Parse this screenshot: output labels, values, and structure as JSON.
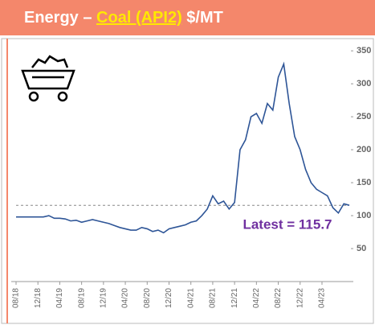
{
  "chart_data": {
    "type": "line",
    "title": {
      "prefix": "Energy –",
      "highlight": "Coal (API2)",
      "suffix": "$/MT"
    },
    "annotation": "Latest = 115.7",
    "x": [
      "08/18",
      "09/18",
      "10/18",
      "11/18",
      "12/18",
      "01/19",
      "02/19",
      "03/19",
      "04/19",
      "05/19",
      "06/19",
      "07/19",
      "08/19",
      "09/19",
      "10/19",
      "11/19",
      "12/19",
      "01/20",
      "02/20",
      "03/20",
      "04/20",
      "05/20",
      "06/20",
      "07/20",
      "08/20",
      "09/20",
      "10/20",
      "11/20",
      "12/20",
      "01/21",
      "02/21",
      "03/21",
      "04/21",
      "05/21",
      "06/21",
      "07/21",
      "08/21",
      "09/21",
      "10/21",
      "11/21",
      "12/21",
      "01/22",
      "02/22",
      "03/22",
      "04/22",
      "05/22",
      "06/22",
      "07/22",
      "08/22",
      "09/22",
      "10/22",
      "11/22",
      "12/22",
      "01/23",
      "02/23",
      "03/23",
      "04/23",
      "05/23",
      "06/23",
      "07/23",
      "08/23",
      "09/23"
    ],
    "xticks": [
      "08/18",
      "12/18",
      "04/19",
      "08/19",
      "12/19",
      "04/20",
      "08/20",
      "12/20",
      "04/21",
      "08/21",
      "12/21",
      "04/22",
      "08/22",
      "12/22",
      "04/23"
    ],
    "series": [
      {
        "color": "#2e5597",
        "values": [
          98,
          98,
          98,
          98,
          98,
          98,
          100,
          96,
          96,
          95,
          92,
          93,
          90,
          92,
          94,
          92,
          90,
          88,
          85,
          82,
          80,
          78,
          78,
          82,
          80,
          76,
          78,
          74,
          80,
          82,
          84,
          86,
          90,
          92,
          100,
          110,
          130,
          118,
          122,
          110,
          120,
          200,
          215,
          250,
          255,
          240,
          270,
          260,
          310,
          330,
          270,
          220,
          200,
          170,
          150,
          140,
          135,
          130,
          112,
          104,
          118,
          115.7
        ]
      }
    ],
    "ylim": [
      0,
      360
    ],
    "yticks": [
      50,
      100,
      150,
      200,
      250,
      300,
      350
    ]
  }
}
